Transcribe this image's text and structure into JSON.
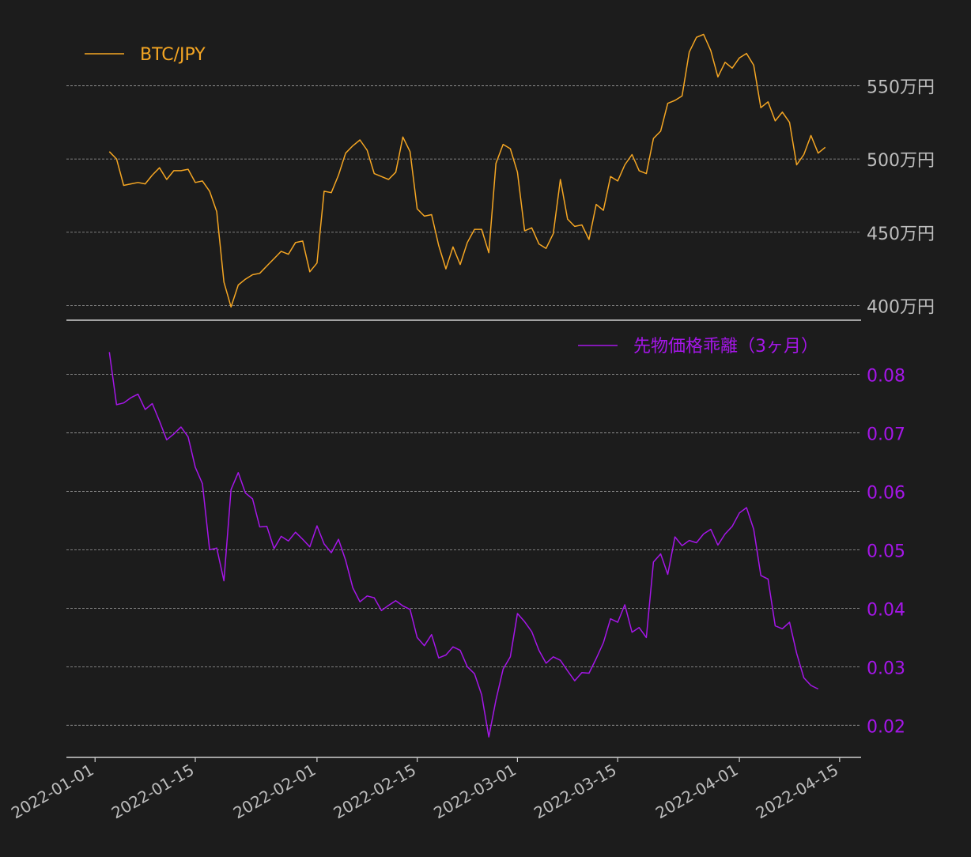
{
  "colors": {
    "background": "#1c1c1c",
    "btc": "#f5a623",
    "basis": "#a516e8",
    "tick_text": "#bdbdbd",
    "grid": "#9e9e9e",
    "axis": "#cfcfcf"
  },
  "chart_data": [
    {
      "type": "line",
      "title": "",
      "ylabel": "",
      "legend": {
        "label": "BTC/JPY",
        "placement": "top-left"
      },
      "y_ticks": [
        {
          "value": 4000000,
          "label": "400万円"
        },
        {
          "value": 4500000,
          "label": "450万円"
        },
        {
          "value": 5000000,
          "label": "500万円"
        },
        {
          "value": 5500000,
          "label": "550万円"
        }
      ],
      "ylim": [
        3900000,
        5950000
      ],
      "grid": true,
      "x_start": "2022-01-03",
      "x_step_days": 1,
      "series": [
        {
          "name": "BTC/JPY",
          "values": [
            5050000,
            5000000,
            4820000,
            4830000,
            4840000,
            4830000,
            4890000,
            4940000,
            4860000,
            4920000,
            4920000,
            4930000,
            4840000,
            4850000,
            4780000,
            4640000,
            4160000,
            3990000,
            4140000,
            4180000,
            4210000,
            4220000,
            4270000,
            4320000,
            4370000,
            4350000,
            4430000,
            4440000,
            4230000,
            4290000,
            4780000,
            4770000,
            4890000,
            5040000,
            5090000,
            5130000,
            5060000,
            4900000,
            4880000,
            4860000,
            4910000,
            5150000,
            5050000,
            4660000,
            4610000,
            4620000,
            4410000,
            4250000,
            4400000,
            4280000,
            4430000,
            4520000,
            4520000,
            4360000,
            4970000,
            5100000,
            5070000,
            4910000,
            4510000,
            4530000,
            4420000,
            4390000,
            4490000,
            4860000,
            4590000,
            4540000,
            4550000,
            4450000,
            4690000,
            4650000,
            4880000,
            4850000,
            4960000,
            5030000,
            4920000,
            4900000,
            5140000,
            5190000,
            5380000,
            5400000,
            5430000,
            5730000,
            5830000,
            5850000,
            5740000,
            5560000,
            5660000,
            5620000,
            5690000,
            5720000,
            5640000,
            5350000,
            5390000,
            5260000,
            5320000,
            5250000,
            4960000,
            5030000,
            5160000,
            5040000,
            5080000
          ]
        }
      ]
    },
    {
      "type": "line",
      "title": "",
      "ylabel": "",
      "legend": {
        "label": "先物価格乖離（3ヶ月）",
        "placement": "top-right"
      },
      "y_ticks": [
        {
          "value": 0.02,
          "label": "0.02"
        },
        {
          "value": 0.03,
          "label": "0.03"
        },
        {
          "value": 0.04,
          "label": "0.04"
        },
        {
          "value": 0.05,
          "label": "0.05"
        },
        {
          "value": 0.06,
          "label": "0.06"
        },
        {
          "value": 0.07,
          "label": "0.07"
        },
        {
          "value": 0.08,
          "label": "0.08"
        }
      ],
      "ylim": [
        0.0145,
        0.0875
      ],
      "grid": true,
      "x_start": "2022-01-03",
      "x_step_days": 1,
      "series": [
        {
          "name": "先物価格乖離（3ヶ月）",
          "values": [
            0.0838,
            0.0748,
            0.0751,
            0.076,
            0.0766,
            0.074,
            0.075,
            0.072,
            0.0688,
            0.0698,
            0.071,
            0.0693,
            0.0641,
            0.0613,
            0.05,
            0.0503,
            0.0447,
            0.0603,
            0.0632,
            0.0597,
            0.0587,
            0.0539,
            0.054,
            0.0502,
            0.0523,
            0.0515,
            0.053,
            0.0518,
            0.0505,
            0.0541,
            0.051,
            0.0495,
            0.0518,
            0.0482,
            0.0435,
            0.0411,
            0.0421,
            0.0418,
            0.0396,
            0.0405,
            0.0413,
            0.0404,
            0.0398,
            0.035,
            0.0336,
            0.0355,
            0.0315,
            0.032,
            0.0334,
            0.0328,
            0.03,
            0.0288,
            0.0252,
            0.018,
            0.0243,
            0.0296,
            0.0317,
            0.0391,
            0.0377,
            0.036,
            0.0328,
            0.0306,
            0.0317,
            0.0311,
            0.0293,
            0.0276,
            0.029,
            0.0289,
            0.0314,
            0.0341,
            0.0382,
            0.0376,
            0.0406,
            0.0359,
            0.0367,
            0.035,
            0.0479,
            0.0493,
            0.0458,
            0.0522,
            0.0507,
            0.0516,
            0.0512,
            0.0527,
            0.0535,
            0.0508,
            0.0527,
            0.054,
            0.0563,
            0.0572,
            0.0535,
            0.0456,
            0.045,
            0.037,
            0.0365,
            0.0376,
            0.0323,
            0.0281,
            0.0268,
            0.0262
          ]
        }
      ]
    }
  ],
  "x_axis": {
    "ticks": [
      {
        "date": "2022-01-01",
        "label": "2022-01-01"
      },
      {
        "date": "2022-01-15",
        "label": "2022-01-15"
      },
      {
        "date": "2022-02-01",
        "label": "2022-02-01"
      },
      {
        "date": "2022-02-15",
        "label": "2022-02-15"
      },
      {
        "date": "2022-03-01",
        "label": "2022-03-01"
      },
      {
        "date": "2022-03-15",
        "label": "2022-03-15"
      },
      {
        "date": "2022-04-01",
        "label": "2022-04-01"
      },
      {
        "date": "2022-04-15",
        "label": "2022-04-15"
      }
    ],
    "xlim": [
      "2021-12-28",
      "2022-04-18"
    ]
  }
}
